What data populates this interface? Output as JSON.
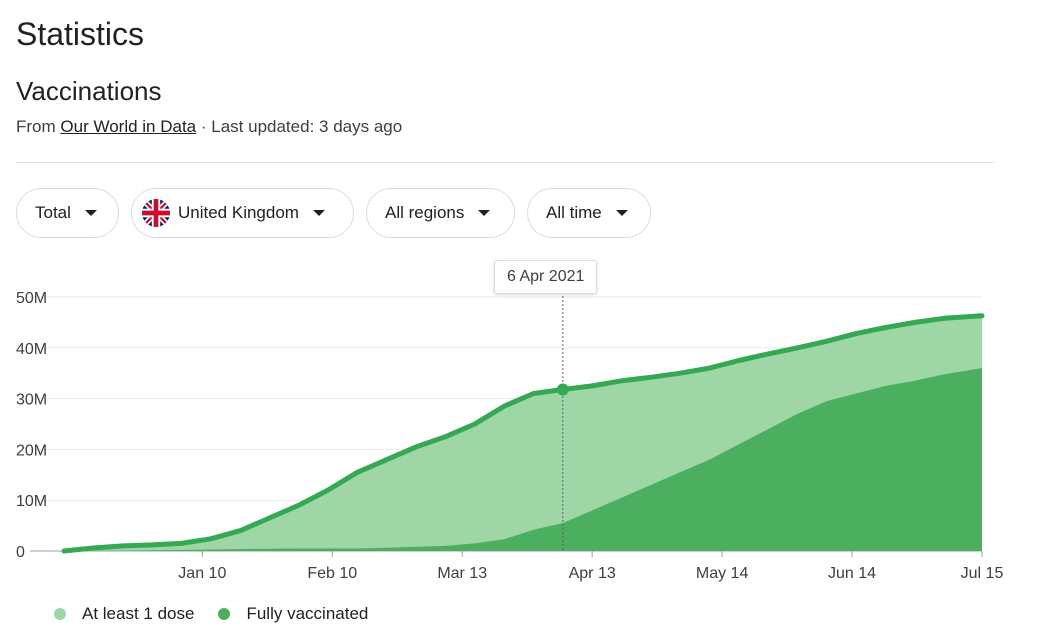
{
  "page": {
    "title": "Statistics"
  },
  "section": {
    "title": "Vaccinations",
    "source_prefix": "From",
    "source_link": "Our World in Data",
    "source_suffix": "· Last updated: 3 days ago"
  },
  "filters": {
    "metric": "Total",
    "country": "United Kingdom",
    "region": "All regions",
    "time": "All time"
  },
  "tooltip": {
    "date": "6 Apr 2021"
  },
  "colors": {
    "at_least_one": "#9ed6a6",
    "fully": "#4caf5f",
    "line": "#34a853"
  },
  "legend": {
    "at_least_one": "At least 1 dose",
    "fully": "Fully vaccinated"
  },
  "chart_data": {
    "type": "area",
    "title": "",
    "xlabel": "",
    "ylabel": "",
    "ylim": [
      0,
      50000000
    ],
    "y_ticks": [
      {
        "value": 0,
        "label": "0"
      },
      {
        "value": 10000000,
        "label": "10M"
      },
      {
        "value": 20000000,
        "label": "20M"
      },
      {
        "value": 30000000,
        "label": "30M"
      },
      {
        "value": 40000000,
        "label": "40M"
      },
      {
        "value": 50000000,
        "label": "50M"
      }
    ],
    "xlim": [
      "2020-12-08",
      "2021-07-15"
    ],
    "x_ticks": [
      {
        "date": "2021-01-10",
        "label": "Jan 10"
      },
      {
        "date": "2021-02-10",
        "label": "Feb 10"
      },
      {
        "date": "2021-03-13",
        "label": "Mar 13"
      },
      {
        "date": "2021-04-13",
        "label": "Apr 13"
      },
      {
        "date": "2021-05-14",
        "label": "May 14"
      },
      {
        "date": "2021-06-14",
        "label": "Jun 14"
      },
      {
        "date": "2021-07-15",
        "label": "Jul 15"
      }
    ],
    "grid": true,
    "legend_position": "bottom-left",
    "highlight": {
      "date": "2021-04-06",
      "value": 31800000
    },
    "series": [
      {
        "name": "At least 1 dose",
        "points": [
          [
            "2020-12-08",
            0.0
          ],
          [
            "2020-12-15",
            0.6
          ],
          [
            "2020-12-22",
            1.0
          ],
          [
            "2020-12-29",
            1.2
          ],
          [
            "2021-01-05",
            1.5
          ],
          [
            "2021-01-12",
            2.4
          ],
          [
            "2021-01-19",
            4.0
          ],
          [
            "2021-01-26",
            6.5
          ],
          [
            "2021-02-02",
            9.0
          ],
          [
            "2021-02-09",
            12.0
          ],
          [
            "2021-02-16",
            15.5
          ],
          [
            "2021-02-23",
            18.0
          ],
          [
            "2021-03-02",
            20.5
          ],
          [
            "2021-03-09",
            22.5
          ],
          [
            "2021-03-16",
            25.0
          ],
          [
            "2021-03-23",
            28.5
          ],
          [
            "2021-03-30",
            31.0
          ],
          [
            "2021-04-06",
            31.8
          ],
          [
            "2021-04-13",
            32.5
          ],
          [
            "2021-04-20",
            33.5
          ],
          [
            "2021-04-27",
            34.2
          ],
          [
            "2021-05-04",
            35.0
          ],
          [
            "2021-05-11",
            36.0
          ],
          [
            "2021-05-18",
            37.5
          ],
          [
            "2021-05-25",
            38.8
          ],
          [
            "2021-06-01",
            40.0
          ],
          [
            "2021-06-08",
            41.3
          ],
          [
            "2021-06-15",
            42.8
          ],
          [
            "2021-06-22",
            44.0
          ],
          [
            "2021-06-29",
            45.0
          ],
          [
            "2021-07-06",
            45.8
          ],
          [
            "2021-07-15",
            46.3
          ]
        ]
      },
      {
        "name": "Fully vaccinated",
        "points": [
          [
            "2020-12-08",
            0.0
          ],
          [
            "2021-01-05",
            0.2
          ],
          [
            "2021-01-19",
            0.4
          ],
          [
            "2021-02-02",
            0.5
          ],
          [
            "2021-02-16",
            0.5
          ],
          [
            "2021-03-02",
            0.8
          ],
          [
            "2021-03-09",
            1.0
          ],
          [
            "2021-03-16",
            1.5
          ],
          [
            "2021-03-23",
            2.3
          ],
          [
            "2021-03-30",
            4.2
          ],
          [
            "2021-04-06",
            5.5
          ],
          [
            "2021-04-13",
            8.0
          ],
          [
            "2021-04-20",
            10.5
          ],
          [
            "2021-04-27",
            13.0
          ],
          [
            "2021-05-04",
            15.5
          ],
          [
            "2021-05-11",
            18.0
          ],
          [
            "2021-05-18",
            21.0
          ],
          [
            "2021-05-25",
            24.0
          ],
          [
            "2021-06-01",
            27.0
          ],
          [
            "2021-06-08",
            29.5
          ],
          [
            "2021-06-15",
            31.0
          ],
          [
            "2021-06-22",
            32.5
          ],
          [
            "2021-06-29",
            33.5
          ],
          [
            "2021-07-06",
            34.8
          ],
          [
            "2021-07-15",
            36.0
          ]
        ]
      }
    ]
  }
}
